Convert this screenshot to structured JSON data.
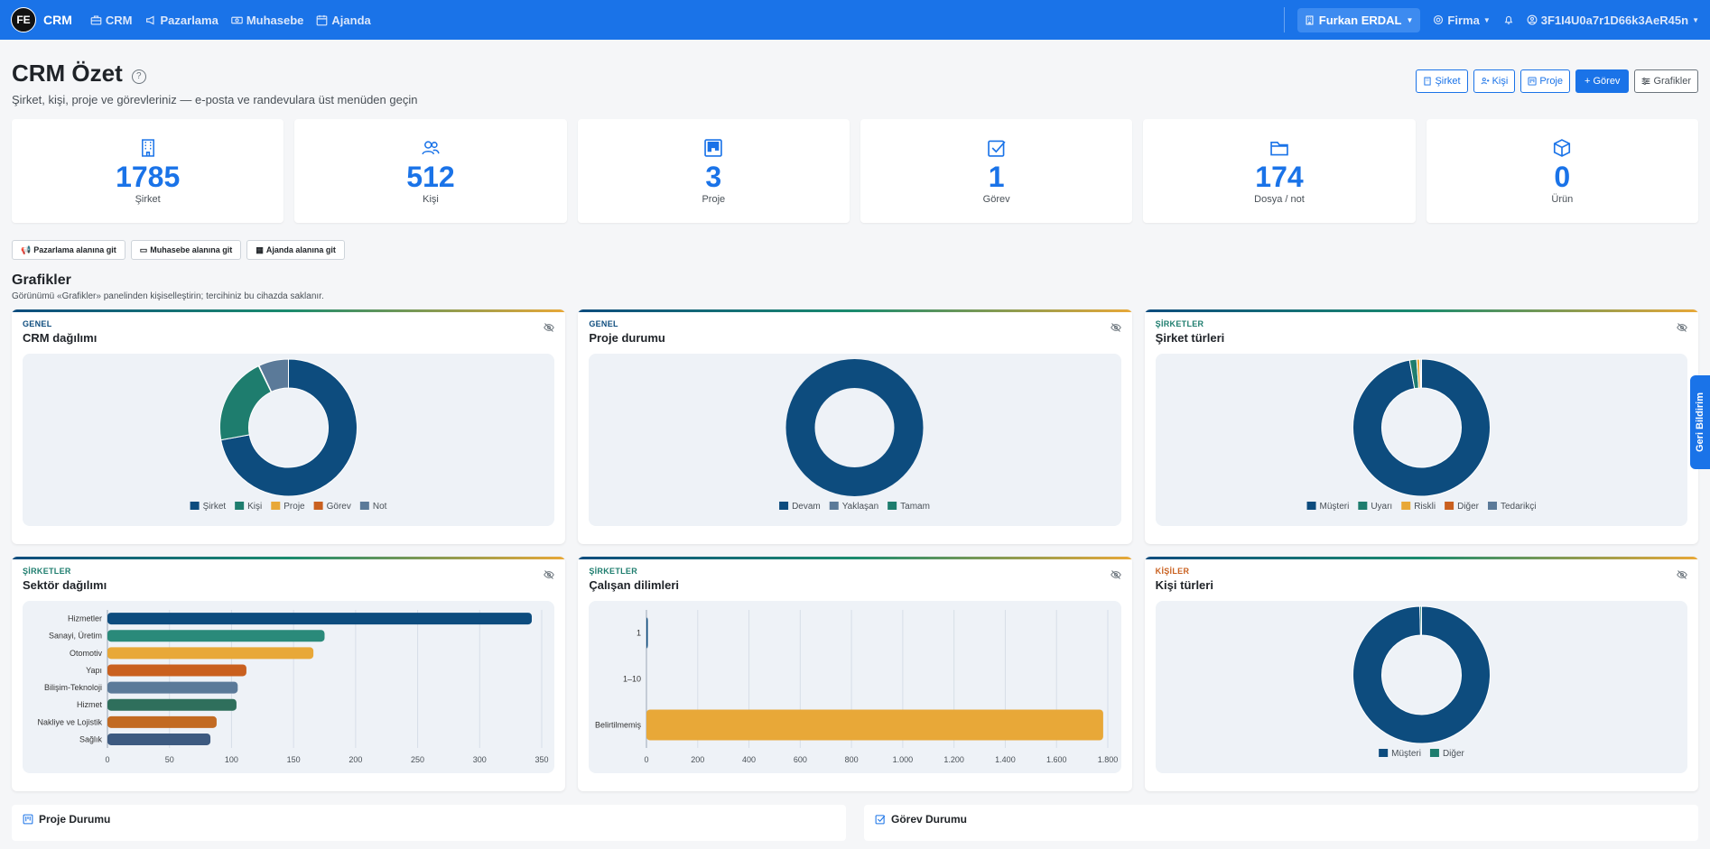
{
  "nav": {
    "brand_logo": "FE",
    "brand": "CRM",
    "items": [
      {
        "label": "CRM",
        "icon": "briefcase-icon"
      },
      {
        "label": "Pazarlama",
        "icon": "megaphone-icon"
      },
      {
        "label": "Muhasebe",
        "icon": "cash-icon"
      },
      {
        "label": "Ajanda",
        "icon": "calendar-icon"
      }
    ],
    "user": "Furkan ERDAL",
    "firm": "Firma",
    "account": "3F1I4U0a7r1D66k3AeR45n"
  },
  "header": {
    "title": "CRM Özet",
    "help": "?",
    "subtitle": "Şirket, kişi, proje ve görevleriniz — e-posta ve randevulara üst menüden geçin",
    "actions": [
      "Şirket",
      "Kişi",
      "Proje",
      "+ Görev",
      "Grafikler"
    ]
  },
  "stats": [
    {
      "value": "1785",
      "label": "Şirket",
      "icon": "building-icon"
    },
    {
      "value": "512",
      "label": "Kişi",
      "icon": "people-icon"
    },
    {
      "value": "3",
      "label": "Proje",
      "icon": "kanban-icon"
    },
    {
      "value": "1",
      "label": "Görev",
      "icon": "check-square-icon"
    },
    {
      "value": "174",
      "label": "Dosya / not",
      "icon": "folder-icon"
    },
    {
      "value": "0",
      "label": "Ürün",
      "icon": "box-icon"
    }
  ],
  "goto": [
    "Pazarlama alanına git",
    "Muhasebe alanına git",
    "Ajanda alanına git"
  ],
  "section": {
    "title": "Grafikler",
    "subtitle": "Görünümü «Grafikler» panelinden kişiselleştirin; tercihiniz bu cihazda saklanır."
  },
  "colors": {
    "primary": "#1a73e8",
    "navy": "#0d4c7e",
    "teal": "#1e7d6e",
    "amber": "#e8a838",
    "rust": "#c9601f",
    "slate": "#5b7a99"
  },
  "chart_data": [
    {
      "kicker": "GENEL",
      "title": "CRM dağılımı",
      "type": "pie",
      "categories": [
        "Şirket",
        "Kişi",
        "Proje",
        "Görev",
        "Not"
      ],
      "values": [
        1785,
        512,
        3,
        1,
        174
      ],
      "colors": [
        "#0d4c7e",
        "#1e7d6e",
        "#e8a838",
        "#c9601f",
        "#5b7a99"
      ],
      "legend": "bottom"
    },
    {
      "kicker": "GENEL",
      "title": "Proje durumu",
      "type": "pie",
      "categories": [
        "Devam",
        "Yaklaşan",
        "Tamam"
      ],
      "values": [
        3,
        0,
        0
      ],
      "colors": [
        "#0d4c7e",
        "#5b7a99",
        "#1e7d6e"
      ],
      "legend": "bottom"
    },
    {
      "kicker": "ŞİRKETLER",
      "title": "Şirket türleri",
      "type": "pie",
      "categories": [
        "Müşteri",
        "Uyarı",
        "Riskli",
        "Diğer",
        "Tedarikçi"
      ],
      "values": [
        1735,
        30,
        12,
        3,
        5
      ],
      "colors": [
        "#0d4c7e",
        "#1e7d6e",
        "#e8a838",
        "#c9601f",
        "#5b7a99"
      ],
      "legend": "bottom"
    },
    {
      "kicker": "ŞİRKETLER",
      "title": "Sektör dağılımı",
      "type": "bar",
      "orientation": "horizontal",
      "categories": [
        "Hizmetler",
        "Sanayi, Üretim",
        "Otomotiv",
        "Yapı",
        "Bilişim-Teknoloji",
        "Hizmet",
        "Nakliye ve Lojistik",
        "Sağlık"
      ],
      "values": [
        342,
        175,
        166,
        112,
        105,
        104,
        88,
        83
      ],
      "colors": [
        "#0d4c7e",
        "#2a8a7a",
        "#e8a838",
        "#c9601f",
        "#5b7a99",
        "#2f6f5c",
        "#c26a22",
        "#3d5a80"
      ],
      "xticks": [
        "0",
        "50",
        "100",
        "150",
        "200",
        "250",
        "300",
        "350"
      ],
      "xlim": [
        0,
        350
      ]
    },
    {
      "kicker": "ŞİRKETLER",
      "title": "Çalışan dilimleri",
      "type": "bar",
      "orientation": "horizontal",
      "categories": [
        "1",
        "1–10",
        "Belirtilmemiş"
      ],
      "values": [
        3,
        0,
        1782
      ],
      "colors": [
        "#0d4c7e",
        "#1e7d6e",
        "#e8a838"
      ],
      "xticks": [
        "0",
        "200",
        "400",
        "600",
        "800",
        "1.000",
        "1.200",
        "1.400",
        "1.600",
        "1.800"
      ],
      "xlim": [
        0,
        1800
      ]
    },
    {
      "kicker": "KİŞİLER",
      "title": "Kişi türleri",
      "type": "pie",
      "categories": [
        "Müşteri",
        "Diğer"
      ],
      "values": [
        510,
        2
      ],
      "colors": [
        "#0d4c7e",
        "#1e7d6e"
      ],
      "legend": "bottom"
    }
  ],
  "feedback": "Geri Bildirim",
  "bottom": [
    "Proje Durumu",
    "Görev Durumu"
  ]
}
